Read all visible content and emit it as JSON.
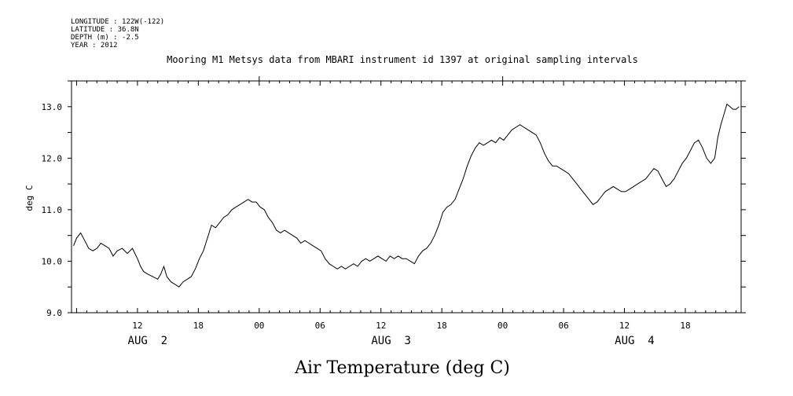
{
  "header": {
    "meta_lines": [
      "LONGITUDE : 122W(-122)",
      "LATITUDE : 36.8N",
      "DEPTH (m) : -2.5",
      "YEAR : 2012"
    ],
    "title": "Mooring M1 Metsys data from MBARI instrument id 1397 at original sampling intervals"
  },
  "chart_data": {
    "type": "line",
    "title": "Mooring M1 Metsys data from MBARI instrument id 1397 at original sampling intervals",
    "xlabel": "Air Temperature (deg C)",
    "ylabel": "deg C",
    "x_unit": "hours from AUG 2 00:00, 2012",
    "xlim": [
      5.5,
      71.5
    ],
    "ylim": [
      9.0,
      13.5
    ],
    "yticks": [
      "9.0",
      "10.0",
      "11.0",
      "12.0",
      "13.0"
    ],
    "ytick_values": [
      9.0,
      10.0,
      11.0,
      12.0,
      13.0
    ],
    "xticks": [
      "12",
      "18",
      "00",
      "06",
      "12",
      "18",
      "00",
      "06",
      "12",
      "18"
    ],
    "xtick_values": [
      12,
      18,
      24,
      30,
      36,
      42,
      48,
      54,
      60,
      66
    ],
    "date_labels": [
      "AUG  2",
      "AUG  3",
      "AUG  4"
    ],
    "date_positions": [
      13,
      37,
      61
    ],
    "grid": false,
    "series": [
      {
        "values": [
          [
            5.7,
            10.3
          ],
          [
            6.0,
            10.45
          ],
          [
            6.4,
            10.55
          ],
          [
            6.8,
            10.4
          ],
          [
            7.2,
            10.25
          ],
          [
            7.6,
            10.2
          ],
          [
            8.0,
            10.25
          ],
          [
            8.4,
            10.35
          ],
          [
            8.8,
            10.3
          ],
          [
            9.2,
            10.25
          ],
          [
            9.6,
            10.1
          ],
          [
            10.0,
            10.2
          ],
          [
            10.5,
            10.25
          ],
          [
            11.0,
            10.15
          ],
          [
            11.5,
            10.25
          ],
          [
            12.0,
            10.05
          ],
          [
            12.3,
            9.9
          ],
          [
            12.6,
            9.8
          ],
          [
            13.0,
            9.75
          ],
          [
            13.5,
            9.7
          ],
          [
            14.0,
            9.65
          ],
          [
            14.3,
            9.75
          ],
          [
            14.6,
            9.9
          ],
          [
            14.9,
            9.7
          ],
          [
            15.3,
            9.6
          ],
          [
            15.7,
            9.55
          ],
          [
            16.1,
            9.5
          ],
          [
            16.5,
            9.6
          ],
          [
            16.9,
            9.65
          ],
          [
            17.3,
            9.7
          ],
          [
            17.7,
            9.85
          ],
          [
            18.1,
            10.05
          ],
          [
            18.5,
            10.2
          ],
          [
            18.9,
            10.45
          ],
          [
            19.3,
            10.7
          ],
          [
            19.7,
            10.65
          ],
          [
            20.1,
            10.75
          ],
          [
            20.5,
            10.85
          ],
          [
            20.9,
            10.9
          ],
          [
            21.3,
            11.0
          ],
          [
            21.7,
            11.05
          ],
          [
            22.1,
            11.1
          ],
          [
            22.5,
            11.15
          ],
          [
            22.9,
            11.2
          ],
          [
            23.3,
            11.15
          ],
          [
            23.7,
            11.15
          ],
          [
            24.1,
            11.05
          ],
          [
            24.5,
            11.0
          ],
          [
            24.9,
            10.85
          ],
          [
            25.3,
            10.75
          ],
          [
            25.7,
            10.6
          ],
          [
            26.1,
            10.55
          ],
          [
            26.5,
            10.6
          ],
          [
            26.9,
            10.55
          ],
          [
            27.3,
            10.5
          ],
          [
            27.7,
            10.45
          ],
          [
            28.1,
            10.35
          ],
          [
            28.5,
            10.4
          ],
          [
            28.9,
            10.35
          ],
          [
            29.3,
            10.3
          ],
          [
            29.7,
            10.25
          ],
          [
            30.1,
            10.2
          ],
          [
            30.5,
            10.05
          ],
          [
            30.9,
            9.95
          ],
          [
            31.3,
            9.9
          ],
          [
            31.7,
            9.85
          ],
          [
            32.1,
            9.9
          ],
          [
            32.5,
            9.85
          ],
          [
            32.9,
            9.9
          ],
          [
            33.3,
            9.95
          ],
          [
            33.7,
            9.9
          ],
          [
            34.1,
            10.0
          ],
          [
            34.5,
            10.05
          ],
          [
            34.9,
            10.0
          ],
          [
            35.3,
            10.05
          ],
          [
            35.7,
            10.1
          ],
          [
            36.1,
            10.05
          ],
          [
            36.5,
            10.0
          ],
          [
            36.9,
            10.1
          ],
          [
            37.3,
            10.05
          ],
          [
            37.7,
            10.1
          ],
          [
            38.1,
            10.05
          ],
          [
            38.5,
            10.05
          ],
          [
            38.9,
            10.0
          ],
          [
            39.3,
            9.95
          ],
          [
            39.7,
            10.1
          ],
          [
            40.1,
            10.2
          ],
          [
            40.5,
            10.25
          ],
          [
            40.9,
            10.35
          ],
          [
            41.3,
            10.5
          ],
          [
            41.7,
            10.7
          ],
          [
            42.1,
            10.95
          ],
          [
            42.5,
            11.05
          ],
          [
            42.9,
            11.1
          ],
          [
            43.3,
            11.2
          ],
          [
            43.7,
            11.4
          ],
          [
            44.1,
            11.6
          ],
          [
            44.5,
            11.85
          ],
          [
            44.9,
            12.05
          ],
          [
            45.3,
            12.2
          ],
          [
            45.7,
            12.3
          ],
          [
            46.1,
            12.25
          ],
          [
            46.5,
            12.3
          ],
          [
            46.9,
            12.35
          ],
          [
            47.3,
            12.3
          ],
          [
            47.7,
            12.4
          ],
          [
            48.1,
            12.35
          ],
          [
            48.5,
            12.45
          ],
          [
            48.9,
            12.55
          ],
          [
            49.3,
            12.6
          ],
          [
            49.7,
            12.65
          ],
          [
            50.1,
            12.6
          ],
          [
            50.5,
            12.55
          ],
          [
            50.9,
            12.5
          ],
          [
            51.3,
            12.45
          ],
          [
            51.7,
            12.3
          ],
          [
            52.1,
            12.1
          ],
          [
            52.5,
            11.95
          ],
          [
            52.9,
            11.85
          ],
          [
            53.3,
            11.85
          ],
          [
            53.7,
            11.8
          ],
          [
            54.1,
            11.75
          ],
          [
            54.5,
            11.7
          ],
          [
            54.9,
            11.6
          ],
          [
            55.3,
            11.5
          ],
          [
            55.7,
            11.4
          ],
          [
            56.1,
            11.3
          ],
          [
            56.5,
            11.2
          ],
          [
            56.9,
            11.1
          ],
          [
            57.3,
            11.15
          ],
          [
            57.7,
            11.25
          ],
          [
            58.1,
            11.35
          ],
          [
            58.5,
            11.4
          ],
          [
            58.9,
            11.45
          ],
          [
            59.3,
            11.4
          ],
          [
            59.7,
            11.35
          ],
          [
            60.1,
            11.35
          ],
          [
            60.5,
            11.4
          ],
          [
            60.9,
            11.45
          ],
          [
            61.3,
            11.5
          ],
          [
            61.7,
            11.55
          ],
          [
            62.1,
            11.6
          ],
          [
            62.5,
            11.7
          ],
          [
            62.9,
            11.8
          ],
          [
            63.3,
            11.75
          ],
          [
            63.7,
            11.6
          ],
          [
            64.1,
            11.45
          ],
          [
            64.5,
            11.5
          ],
          [
            64.9,
            11.6
          ],
          [
            65.3,
            11.75
          ],
          [
            65.7,
            11.9
          ],
          [
            66.1,
            12.0
          ],
          [
            66.5,
            12.15
          ],
          [
            66.9,
            12.3
          ],
          [
            67.3,
            12.35
          ],
          [
            67.7,
            12.2
          ],
          [
            68.1,
            12.0
          ],
          [
            68.5,
            11.9
          ],
          [
            68.9,
            12.0
          ],
          [
            69.2,
            12.4
          ],
          [
            69.5,
            12.65
          ],
          [
            69.8,
            12.85
          ],
          [
            70.1,
            13.05
          ],
          [
            70.4,
            13.0
          ],
          [
            70.7,
            12.95
          ],
          [
            71.0,
            12.95
          ],
          [
            71.3,
            13.0
          ]
        ]
      }
    ]
  }
}
